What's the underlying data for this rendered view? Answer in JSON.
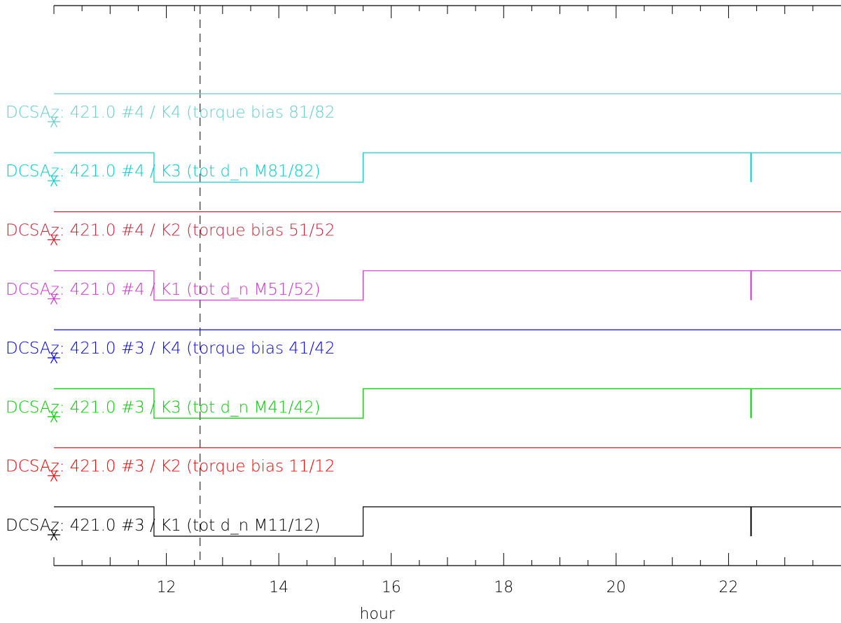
{
  "chart_data": {
    "type": "line",
    "xlabel": "hour",
    "x_range": [
      10,
      24
    ],
    "x_ticks": [
      12,
      14,
      16,
      18,
      20,
      22
    ],
    "marker_line_x": 12.6,
    "series": [
      {
        "name": "DCSAz: 421.0 #3 / K1 (tot d_n M11/12)",
        "color": "#000000",
        "kind": "step"
      },
      {
        "name": "DCSAz: 421.0 #3 / K2 (torque bias 11/12",
        "color": "#ff0000",
        "kind": "flat"
      },
      {
        "name": "DCSAz: 421.0 #3 / K3 (tot d_n M41/42)",
        "color": "#00cc00",
        "kind": "step"
      },
      {
        "name": "DCSAz: 421.0 #3 / K4 (torque bias 41/42",
        "color": "#0000ff",
        "kind": "flat"
      },
      {
        "name": "DCSAz: 421.0 #4 / K1 (tot d_n M51/52)",
        "color": "#cc33cc",
        "kind": "step"
      },
      {
        "name": "DCSAz: 421.0 #4 / K2 (torque bias 51/52",
        "color": "#cc2233",
        "kind": "flat"
      },
      {
        "name": "DCSAz: 421.0 #4 / K3 (tot d_n M81/82)",
        "color": "#00cccc",
        "kind": "step"
      },
      {
        "name": "DCSAz: 421.0 #4 / K4 (torque bias 81/82",
        "color": "#66cccc",
        "kind": "flat"
      }
    ],
    "step_pattern": {
      "segments": [
        {
          "from": 10.0,
          "to": 11.78,
          "state": "high"
        },
        {
          "from": 11.78,
          "to": 15.5,
          "state": "low"
        },
        {
          "from": 15.5,
          "to": 24.0,
          "state": "high"
        }
      ],
      "spike_x": 22.4
    }
  }
}
